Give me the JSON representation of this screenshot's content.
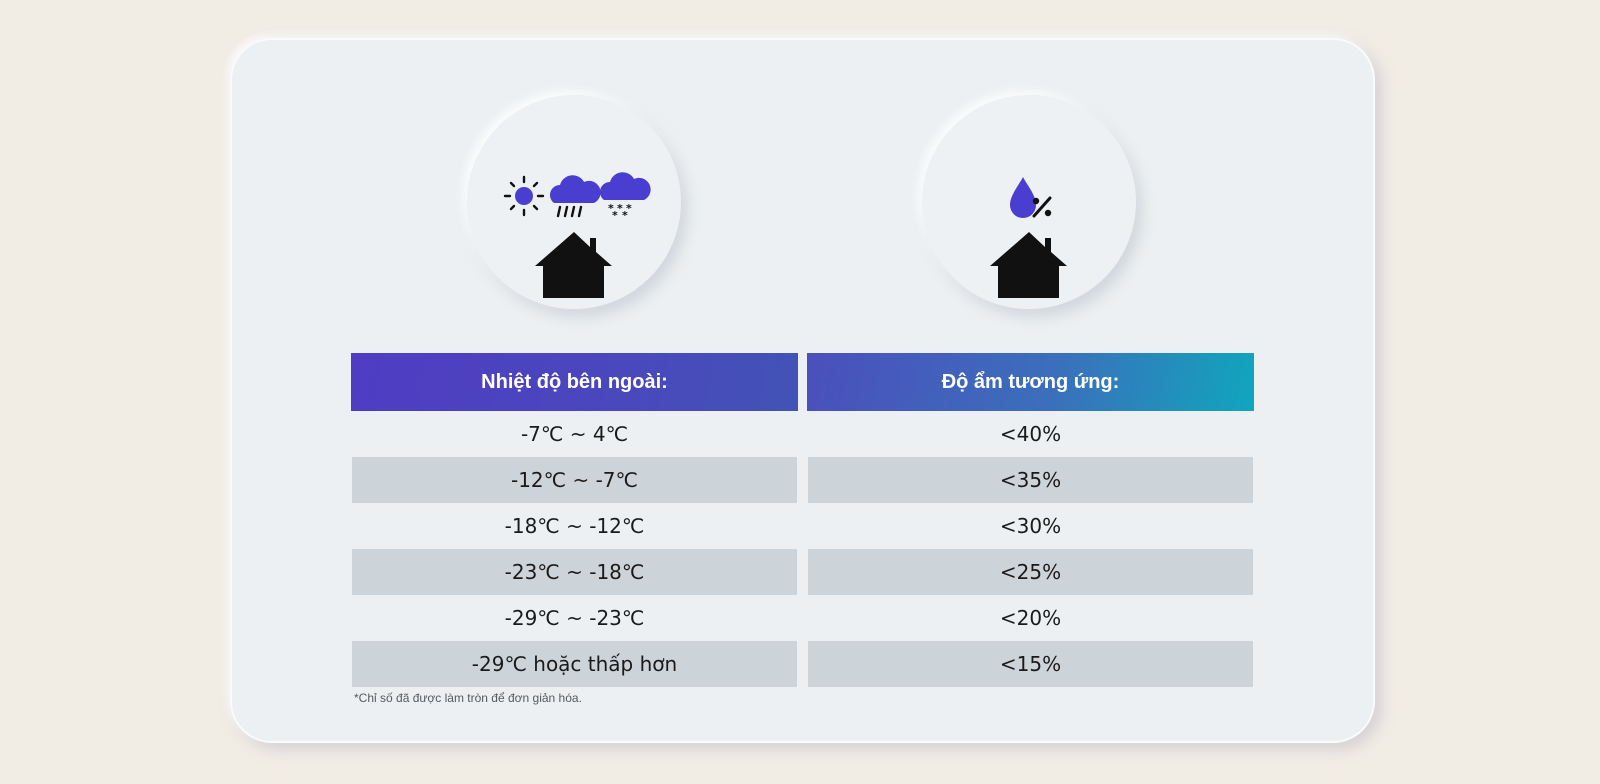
{
  "table": {
    "header_left": "Nhiệt độ bên ngoài:",
    "header_right": "Độ ẩm tương ứng:",
    "rows": [
      {
        "temperature": "-7℃ ~ 4℃",
        "humidity": "<40%"
      },
      {
        "temperature": "-12℃ ~ -7℃",
        "humidity": "<35%"
      },
      {
        "temperature": "-18℃ ~ -12℃",
        "humidity": "<30%"
      },
      {
        "temperature": "-23℃ ~ -18℃",
        "humidity": "<25%"
      },
      {
        "temperature": "-29℃ ~ -23℃",
        "humidity": "<20%"
      },
      {
        "temperature": "-29℃ hoặc thấp hơn",
        "humidity": "<15%"
      }
    ]
  },
  "footnote": "*Chỉ số đã được làm tròn để đơn giản hóa.",
  "icons": {
    "left": [
      "sun-icon",
      "rain-cloud-icon",
      "snow-cloud-icon",
      "house-icon"
    ],
    "right": [
      "humidity-drop-percent-icon",
      "house-icon"
    ]
  },
  "colors": {
    "background": "#f1ece4",
    "card": "#ecf0f2",
    "accent_purple": "#4f3cc3",
    "accent_teal": "#10a6bd",
    "row_shade": "#cdd4d9",
    "icon_blue": "#4a3ed0"
  }
}
